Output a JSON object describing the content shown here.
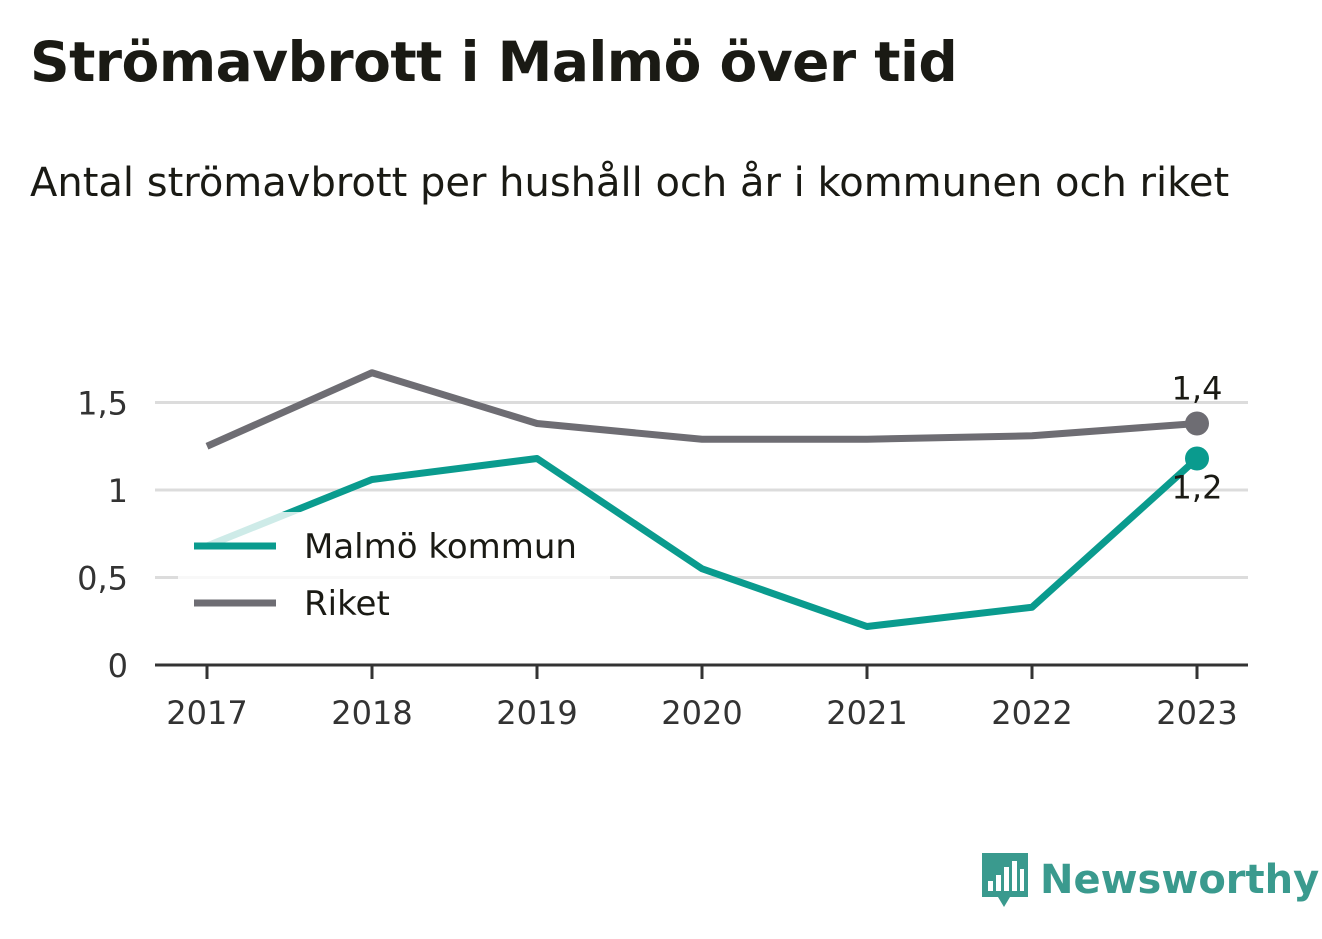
{
  "header": {
    "title": "Strömavbrott i Malmö över tid",
    "subtitle": "Antal strömavbrott per hushåll och år i kommunen och riket"
  },
  "colors": {
    "malmo": "#0a9b8e",
    "riket": "#6e6d73",
    "grid": "#dcdcdc",
    "axis": "#333333",
    "brand": "#3a9a8e"
  },
  "brand": {
    "name": "Newsworthy",
    "icon": "bar-chart-speech-bubble-icon"
  },
  "chart_data": {
    "type": "line",
    "title": "Strömavbrott i Malmö över tid",
    "subtitle": "Antal strömavbrott per hushåll och år i kommunen och riket",
    "xlabel": "",
    "ylabel": "",
    "x": [
      "2017",
      "2018",
      "2019",
      "2020",
      "2021",
      "2022",
      "2023"
    ],
    "ylim": [
      0,
      1.75
    ],
    "yticks": [
      0,
      0.5,
      1,
      1.5
    ],
    "ytick_labels": [
      "0",
      "0,5",
      "1",
      "1,5"
    ],
    "grid": true,
    "legend": "left-middle",
    "series": [
      {
        "name": "Malmö kommun",
        "color": "#0a9b8e",
        "values": [
          0.68,
          1.06,
          1.18,
          0.55,
          0.22,
          0.33,
          1.18
        ],
        "end_label": "1,2"
      },
      {
        "name": "Riket",
        "color": "#6e6d73",
        "values": [
          1.25,
          1.67,
          1.38,
          1.29,
          1.29,
          1.31,
          1.38
        ],
        "end_label": "1,4"
      }
    ]
  }
}
